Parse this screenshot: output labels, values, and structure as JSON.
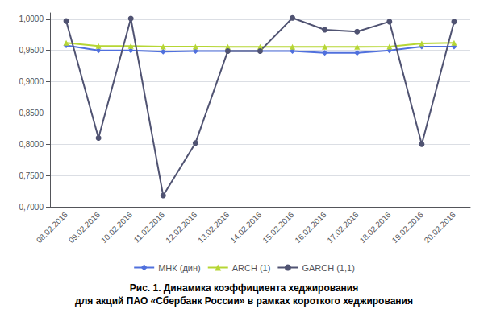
{
  "chart_data": {
    "type": "line",
    "title": "Рис. 1. Динамика коэффициента хеджирования",
    "subtitle": "для акций ПАО «Сбербанк России» в рамках короткого хеджирования",
    "categories": [
      "08.02.2016",
      "09.02.2016",
      "10.02.2016",
      "11.02.2016",
      "12.02.2016",
      "13.02.2016",
      "14.02.2016",
      "15.02.2016",
      "16.02.2016",
      "17.02.2016",
      "18.02.2016",
      "19.02.2016",
      "20.02.2016"
    ],
    "series": [
      {
        "name": "МНК (дин)",
        "marker": "diamond",
        "values": [
          0.958,
          0.95,
          0.95,
          0.948,
          0.949,
          0.949,
          0.949,
          0.949,
          0.946,
          0.946,
          0.95,
          0.956,
          0.956
        ]
      },
      {
        "name": "ARCH (1)",
        "marker": "triangle",
        "values": [
          0.962,
          0.957,
          0.957,
          0.956,
          0.956,
          0.9555,
          0.9555,
          0.9555,
          0.9555,
          0.9555,
          0.956,
          0.961,
          0.962
        ]
      },
      {
        "name": "GARCH (1,1)",
        "marker": "circle",
        "values": [
          0.997,
          0.81,
          1.001,
          0.718,
          0.802,
          0.949,
          0.949,
          1.002,
          0.983,
          0.98,
          0.996,
          0.8,
          0.996
        ]
      }
    ],
    "ylim": [
      0.7,
      1.01
    ],
    "yticks": [
      {
        "value": 0.7,
        "label": "0,7000"
      },
      {
        "value": 0.75,
        "label": "0,7500"
      },
      {
        "value": 0.8,
        "label": "0,8000"
      },
      {
        "value": 0.85,
        "label": "0,8500"
      },
      {
        "value": 0.9,
        "label": "0,9000"
      },
      {
        "value": 0.95,
        "label": "0,9500"
      },
      {
        "value": 1.0,
        "label": "1,0000"
      }
    ],
    "grid": true,
    "legend": "bottom"
  }
}
